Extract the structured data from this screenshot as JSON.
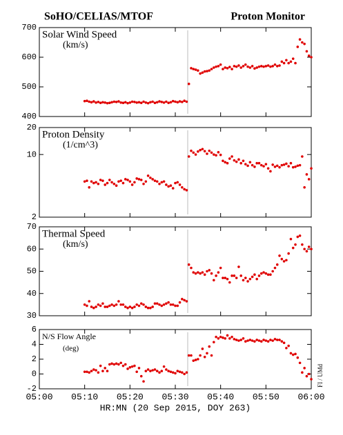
{
  "page": {
    "title_left": "SoHO/CELIAS/MTOF",
    "title_right": "Proton Monitor",
    "xlabel": "HR:MN (20 Sep 2015, DOY 263)",
    "credit": "FI / UMd"
  },
  "chart_data": [
    {
      "type": "scatter",
      "title": "Solar Wind Speed",
      "subtitle": "(km/s)",
      "color": "#e00000",
      "xlim": [
        0,
        60
      ],
      "xticks": [
        0,
        10,
        20,
        30,
        40,
        50,
        60
      ],
      "ylim": [
        400,
        700
      ],
      "yticks": [
        400,
        500,
        600,
        700
      ],
      "x": [
        10,
        10.5,
        11,
        11.5,
        12,
        12.5,
        13,
        13.5,
        14,
        14.5,
        15,
        15.5,
        16,
        16.5,
        17,
        17.5,
        18,
        18.5,
        19,
        19.5,
        20,
        20.5,
        21,
        21.5,
        22,
        22.5,
        23,
        23.5,
        24,
        24.5,
        25,
        25.5,
        26,
        26.5,
        27,
        27.5,
        28,
        28.5,
        29,
        29.5,
        30,
        30.5,
        31,
        31.5,
        32,
        32.5,
        33,
        33.5,
        34,
        34.5,
        35,
        35.5,
        36,
        36.5,
        37,
        37.5,
        38,
        38.5,
        39,
        39.5,
        40,
        40.5,
        41,
        41.5,
        42,
        42.5,
        43,
        43.5,
        44,
        44.5,
        45,
        45.5,
        46,
        46.5,
        47,
        47.5,
        48,
        48.5,
        49,
        49.5,
        50,
        50.5,
        51,
        51.5,
        52,
        52.5,
        53,
        53.5,
        54,
        54.5,
        55,
        55.5,
        56,
        56.5,
        57,
        57.5,
        58,
        58.5,
        59,
        59.5,
        60
      ],
      "values": [
        452,
        453,
        450,
        448,
        451,
        447,
        449,
        446,
        448,
        447,
        445,
        446,
        448,
        450,
        449,
        451,
        447,
        446,
        448,
        445,
        447,
        450,
        449,
        447,
        448,
        446,
        450,
        447,
        445,
        448,
        450,
        446,
        448,
        451,
        449,
        447,
        450,
        446,
        448,
        452,
        450,
        448,
        451,
        449,
        453,
        450,
        510,
        563,
        560,
        558,
        555,
        545,
        548,
        552,
        553,
        555,
        560,
        565,
        568,
        570,
        575,
        560,
        565,
        563,
        567,
        560,
        570,
        568,
        572,
        565,
        570,
        575,
        568,
        565,
        570,
        562,
        565,
        568,
        570,
        568,
        570,
        572,
        568,
        570,
        575,
        570,
        572,
        585,
        580,
        590,
        580,
        585,
        595,
        580,
        635,
        660,
        650,
        645,
        620,
        605,
        600
      ]
    },
    {
      "type": "scatter",
      "title": "Proton Density",
      "subtitle": "(1/cm^3)",
      "color": "#e00000",
      "yscale": "log",
      "xlim": [
        0,
        60
      ],
      "xticks": [
        0,
        10,
        20,
        30,
        40,
        50,
        60
      ],
      "ylim": [
        2,
        20
      ],
      "yticks": [
        2,
        10,
        20
      ],
      "x": [
        10,
        10.5,
        11,
        11.5,
        12,
        12.5,
        13,
        13.5,
        14,
        14.5,
        15,
        15.5,
        16,
        16.5,
        17,
        17.5,
        18,
        18.5,
        19,
        19.5,
        20,
        20.5,
        21,
        21.5,
        22,
        22.5,
        23,
        23.5,
        24,
        24.5,
        25,
        25.5,
        26,
        26.5,
        27,
        27.5,
        28,
        28.5,
        29,
        29.5,
        30,
        30.5,
        31,
        31.5,
        32,
        32.5,
        33,
        33.5,
        34,
        34.5,
        35,
        35.5,
        36,
        36.5,
        37,
        37.5,
        38,
        38.5,
        39,
        39.5,
        40,
        40.5,
        41,
        41.5,
        42,
        42.5,
        43,
        43.5,
        44,
        44.5,
        45,
        45.5,
        46,
        46.5,
        47,
        47.5,
        48,
        48.5,
        49,
        49.5,
        50,
        50.5,
        51,
        51.5,
        52,
        52.5,
        53,
        53.5,
        54,
        54.5,
        55,
        55.5,
        56,
        56.5,
        57,
        57.5,
        58,
        58.5,
        59,
        59.5,
        60
      ],
      "values": [
        5.0,
        5.1,
        4.3,
        5.0,
        4.8,
        4.9,
        4.7,
        5.2,
        5.1,
        4.6,
        4.8,
        5.2,
        4.9,
        4.7,
        4.5,
        5.0,
        5.1,
        4.8,
        5.3,
        5.2,
        5.0,
        4.6,
        4.9,
        5.4,
        5.3,
        5.2,
        4.7,
        5.0,
        5.8,
        5.5,
        5.3,
        5.1,
        5.0,
        4.7,
        4.9,
        5.0,
        4.6,
        4.4,
        4.5,
        4.2,
        4.8,
        4.9,
        4.6,
        4.3,
        4.1,
        4.0,
        9.5,
        11.0,
        10.5,
        10.0,
        10.8,
        11.2,
        11.5,
        10.9,
        10.2,
        11.0,
        10.5,
        10.0,
        9.8,
        10.6,
        9.9,
        8.5,
        8.2,
        8.0,
        9.0,
        9.5,
        8.6,
        8.3,
        8.8,
        8.0,
        8.5,
        7.8,
        7.5,
        8.2,
        7.6,
        7.3,
        8.0,
        8.0,
        7.6,
        7.4,
        7.8,
        7.0,
        6.5,
        7.7,
        7.3,
        7.5,
        7.2,
        7.6,
        7.7,
        7.9,
        7.4,
        8.0,
        7.2,
        7.3,
        7.5,
        7.6,
        9.5,
        4.3,
        6.0,
        5.3,
        7.0
      ]
    },
    {
      "type": "scatter",
      "title": "Thermal Speed",
      "subtitle": "(km/s)",
      "color": "#e00000",
      "xlim": [
        0,
        60
      ],
      "xticks": [
        0,
        10,
        20,
        30,
        40,
        50,
        60
      ],
      "ylim": [
        30,
        70
      ],
      "yticks": [
        30,
        40,
        50,
        60,
        70
      ],
      "x": [
        10,
        10.5,
        11,
        11.5,
        12,
        12.5,
        13,
        13.5,
        14,
        14.5,
        15,
        15.5,
        16,
        16.5,
        17,
        17.5,
        18,
        18.5,
        19,
        19.5,
        20,
        20.5,
        21,
        21.5,
        22,
        22.5,
        23,
        23.5,
        24,
        24.5,
        25,
        25.5,
        26,
        26.5,
        27,
        27.5,
        28,
        28.5,
        29,
        29.5,
        30,
        30.5,
        31,
        31.5,
        32,
        32.5,
        33,
        33.5,
        34,
        34.5,
        35,
        35.5,
        36,
        36.5,
        37,
        37.5,
        38,
        38.5,
        39,
        39.5,
        40,
        40.5,
        41,
        41.5,
        42,
        42.5,
        43,
        43.5,
        44,
        44.5,
        45,
        45.5,
        46,
        46.5,
        47,
        47.5,
        48,
        48.5,
        49,
        49.5,
        50,
        50.5,
        51,
        51.5,
        52,
        52.5,
        53,
        53.5,
        54,
        54.5,
        55,
        55.5,
        56,
        56.5,
        57,
        57.5,
        58,
        58.5,
        59,
        59.5,
        60
      ],
      "values": [
        35,
        34.5,
        36.5,
        34,
        33.5,
        34,
        35,
        34.5,
        35.5,
        34,
        34,
        34.5,
        35,
        34.5,
        35,
        36.5,
        35,
        35,
        34,
        33.5,
        34,
        33.5,
        34,
        35,
        34.5,
        35.5,
        35,
        34,
        33.5,
        33.5,
        34,
        35.5,
        35.5,
        35,
        34.5,
        35,
        35.5,
        36,
        35,
        35,
        34.5,
        34.5,
        36,
        37.5,
        37,
        36.5,
        53,
        51.5,
        49.5,
        49,
        49.5,
        49,
        49.5,
        48.5,
        50,
        50.5,
        49,
        46,
        48,
        49.5,
        51.5,
        47,
        47,
        46.5,
        45,
        48,
        48,
        47,
        52,
        48,
        46,
        47,
        45.5,
        46.5,
        47.5,
        48.5,
        46.5,
        48,
        49,
        49.5,
        49,
        48.5,
        48.5,
        50,
        51.5,
        53,
        57,
        55.5,
        54.5,
        55,
        58,
        64.5,
        60.5,
        62,
        65.5,
        66,
        62,
        60,
        59,
        61,
        60
      ]
    },
    {
      "type": "scatter",
      "title": "N/S Flow Angle",
      "subtitle": "(deg)",
      "color": "#e00000",
      "xlim": [
        0,
        60
      ],
      "xticks": [
        {
          "value": 0,
          "label": "05:00"
        },
        {
          "value": 10,
          "label": "05:10"
        },
        {
          "value": 20,
          "label": "05:20"
        },
        {
          "value": 30,
          "label": "05:30"
        },
        {
          "value": 40,
          "label": "05:40"
        },
        {
          "value": 50,
          "label": "05:50"
        },
        {
          "value": 60,
          "label": "06:00"
        }
      ],
      "ylim": [
        -2,
        6
      ],
      "yticks": [
        -2,
        0,
        2,
        4,
        6
      ],
      "x": [
        10,
        10.5,
        11,
        11.5,
        12,
        12.5,
        13,
        13.5,
        14,
        14.5,
        15,
        15.5,
        16,
        16.5,
        17,
        17.5,
        18,
        18.5,
        19,
        19.5,
        20,
        20.5,
        21,
        21.5,
        22,
        22.5,
        23,
        23.5,
        24,
        24.5,
        25,
        25.5,
        26,
        26.5,
        27,
        27.5,
        28,
        28.5,
        29,
        29.5,
        30,
        30.5,
        31,
        31.5,
        32,
        32.5,
        33,
        33.5,
        34,
        34.5,
        35,
        35.5,
        36,
        36.5,
        37,
        37.5,
        38,
        38.5,
        39,
        39.5,
        40,
        40.5,
        41,
        41.5,
        42,
        42.5,
        43,
        43.5,
        44,
        44.5,
        45,
        45.5,
        46,
        46.5,
        47,
        47.5,
        48,
        48.5,
        49,
        49.5,
        50,
        50.5,
        51,
        51.5,
        52,
        52.5,
        53,
        53.5,
        54,
        54.5,
        55,
        55.5,
        56,
        56.5,
        57,
        57.5,
        58,
        58.5,
        59,
        59.5,
        60
      ],
      "values": [
        0.3,
        0.3,
        0.2,
        0.4,
        0.6,
        0.5,
        0.2,
        1.1,
        0.4,
        0.8,
        0.4,
        1.3,
        1.4,
        1.3,
        1.4,
        1.3,
        1.5,
        1.1,
        1.3,
        0.7,
        0.9,
        1.0,
        1.1,
        0.3,
        0.8,
        -0.3,
        -1.0,
        0.4,
        0.6,
        0.4,
        0.5,
        0.6,
        0.4,
        0.2,
        0.4,
        1.0,
        0.6,
        0.4,
        0.3,
        0.2,
        0.1,
        0.4,
        0.3,
        0.2,
        0.0,
        0.2,
        2.5,
        2.5,
        1.8,
        1.9,
        2.0,
        2.5,
        3.4,
        2.3,
        2.8,
        3.7,
        2.5,
        4.3,
        5.0,
        4.8,
        5.0,
        4.9,
        4.8,
        5.2,
        4.8,
        5.0,
        4.7,
        4.6,
        4.5,
        4.6,
        4.8,
        4.4,
        4.5,
        4.6,
        4.5,
        4.4,
        4.6,
        4.5,
        4.4,
        4.6,
        4.5,
        4.4,
        4.6,
        4.5,
        4.7,
        4.6,
        4.6,
        4.4,
        4.2,
        3.5,
        3.8,
        2.8,
        2.6,
        2.7,
        2.2,
        1.5,
        0.2,
        0.8,
        -0.3,
        0.0,
        -0.7
      ]
    }
  ]
}
